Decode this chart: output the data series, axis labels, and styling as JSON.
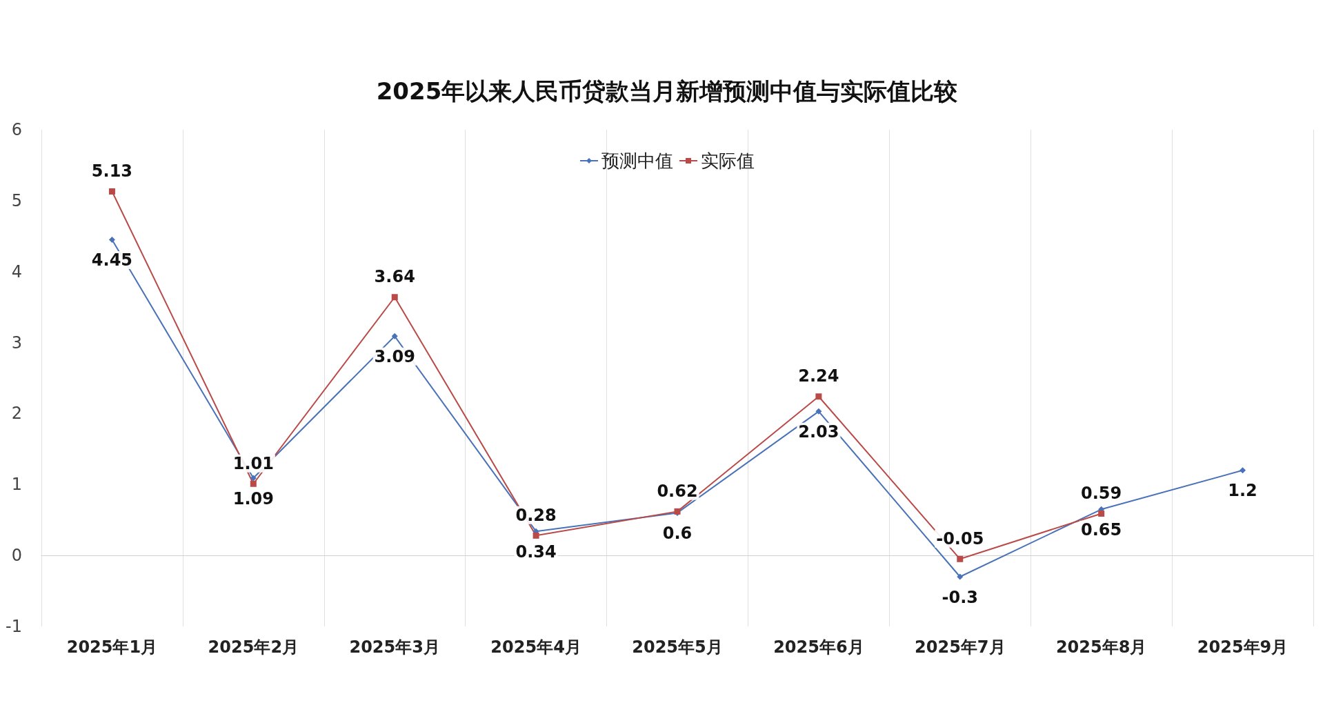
{
  "chart_data": {
    "type": "line",
    "title": "2025年以来人民币贷款当月新增预测中值与实际值比较",
    "categories": [
      "2025年1月",
      "2025年2月",
      "2025年3月",
      "2025年4月",
      "2025年5月",
      "2025年6月",
      "2025年7月",
      "2025年8月",
      "2025年9月"
    ],
    "series": [
      {
        "name": "预测中值",
        "color": "#4a72b8",
        "marker": "diamond",
        "values": [
          4.45,
          1.09,
          3.09,
          0.34,
          0.6,
          2.03,
          -0.3,
          0.65,
          1.2
        ]
      },
      {
        "name": "实际值",
        "color": "#b94a48",
        "marker": "square",
        "values": [
          5.13,
          1.01,
          3.64,
          0.28,
          0.62,
          2.24,
          -0.05,
          0.59,
          null
        ]
      }
    ],
    "ylim": [
      -1,
      6
    ],
    "yticks": [
      -1,
      0,
      1,
      2,
      3,
      4,
      5,
      6
    ],
    "grid": "x",
    "legend": "top",
    "data_labels": true,
    "line_style": "solid"
  }
}
